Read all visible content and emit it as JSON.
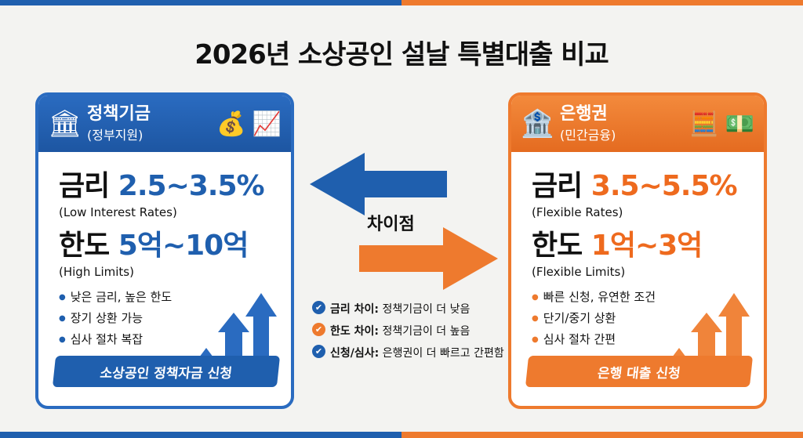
{
  "title": "2026년 소상공인 설날 특별대출 비교",
  "colors": {
    "policy": "#1f5fae",
    "bank": "#ee7a2e"
  },
  "left": {
    "title": "정책기금",
    "subtitle": "(정부지원)",
    "icons": [
      "government-building-icon",
      "money-bag-icon",
      "growth-chart-icon"
    ],
    "rate_label": "금리",
    "rate_value": "2.5~3.5%",
    "rate_note": "(Low Interest Rates)",
    "limit_label": "한도",
    "limit_value": "5억~10억",
    "limit_note": "(High Limits)",
    "bullets": [
      "낮은 금리, 높은 한도",
      "장기 상환 가능",
      "심사 절차 복잡"
    ],
    "cta": "소상공인 정책자금 신청"
  },
  "right": {
    "title": "은행권",
    "subtitle": "(민간금융)",
    "icons": [
      "bank-icon",
      "calculator-icon",
      "cash-icon"
    ],
    "rate_label": "금리",
    "rate_value": "3.5~5.5%",
    "rate_note": "(Flexible Rates)",
    "limit_label": "한도",
    "limit_value": "1억~3억",
    "limit_note": "(Flexible Limits)",
    "bullets": [
      "빠른 신청, 유연한 조건",
      "단기/중기 상환",
      "심사 절차 간편"
    ],
    "cta": "은행 대출 신청"
  },
  "center": {
    "label": "차이점",
    "notes": [
      {
        "key": "금리 차이:",
        "text": "정책기금이 더 낮음",
        "color": "#1f5fae"
      },
      {
        "key": "한도 차이:",
        "text": "정책기금이 더 높음",
        "color": "#ee7a2e"
      },
      {
        "key": "신청/심사:",
        "text": "은행권이 더 빠르고 간편함",
        "color": "#1f5fae"
      }
    ]
  }
}
